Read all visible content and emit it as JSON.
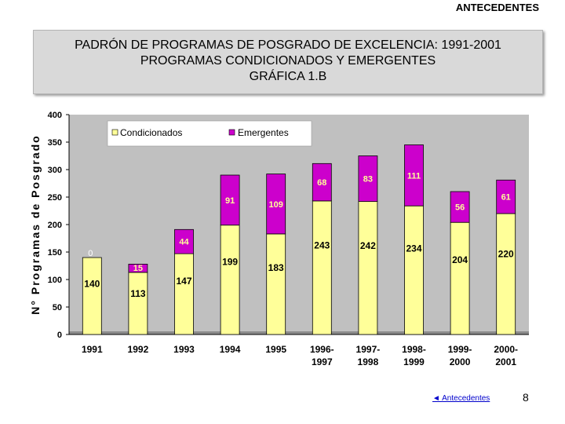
{
  "header": {
    "label": "ANTECEDENTES"
  },
  "title": {
    "line1": "PADRÓN DE PROGRAMAS DE POSGRADO DE EXCELENCIA: 1991-2001",
    "line2": "PROGRAMAS CONDICIONADOS Y EMERGENTES",
    "line3": "GRÁFICA  1.B"
  },
  "chart_data": {
    "type": "bar",
    "stacked": true,
    "categories": [
      "1991",
      "1992",
      "1993",
      "1994",
      "1995",
      "1996-1997",
      "1997-1998",
      "1998-1999",
      "1999-2000",
      "2000-2001"
    ],
    "category_lines": [
      [
        "1991"
      ],
      [
        "1992"
      ],
      [
        "1993"
      ],
      [
        "1994"
      ],
      [
        "1995"
      ],
      [
        "1996-",
        "1997"
      ],
      [
        "1997-",
        "1998"
      ],
      [
        "1998-",
        "1999"
      ],
      [
        "1999-",
        "2000"
      ],
      [
        "2000-",
        "2001"
      ]
    ],
    "series": [
      {
        "name": "Condicionados",
        "color": "#ffff99",
        "values": [
          140,
          113,
          147,
          199,
          183,
          243,
          242,
          234,
          204,
          220
        ]
      },
      {
        "name": "Emergentes",
        "color": "#cc00cc",
        "values": [
          0,
          15,
          44,
          91,
          109,
          68,
          83,
          111,
          56,
          61
        ]
      }
    ],
    "ylabel": "N° Programas de Posgrado",
    "xlabel": "",
    "ylim": [
      0,
      400
    ],
    "yticks": [
      0,
      50,
      100,
      150,
      200,
      250,
      300,
      350,
      400
    ],
    "legend": "top-left"
  },
  "footer": {
    "link_label": "◄ Antecedentes",
    "page_number": "8"
  }
}
